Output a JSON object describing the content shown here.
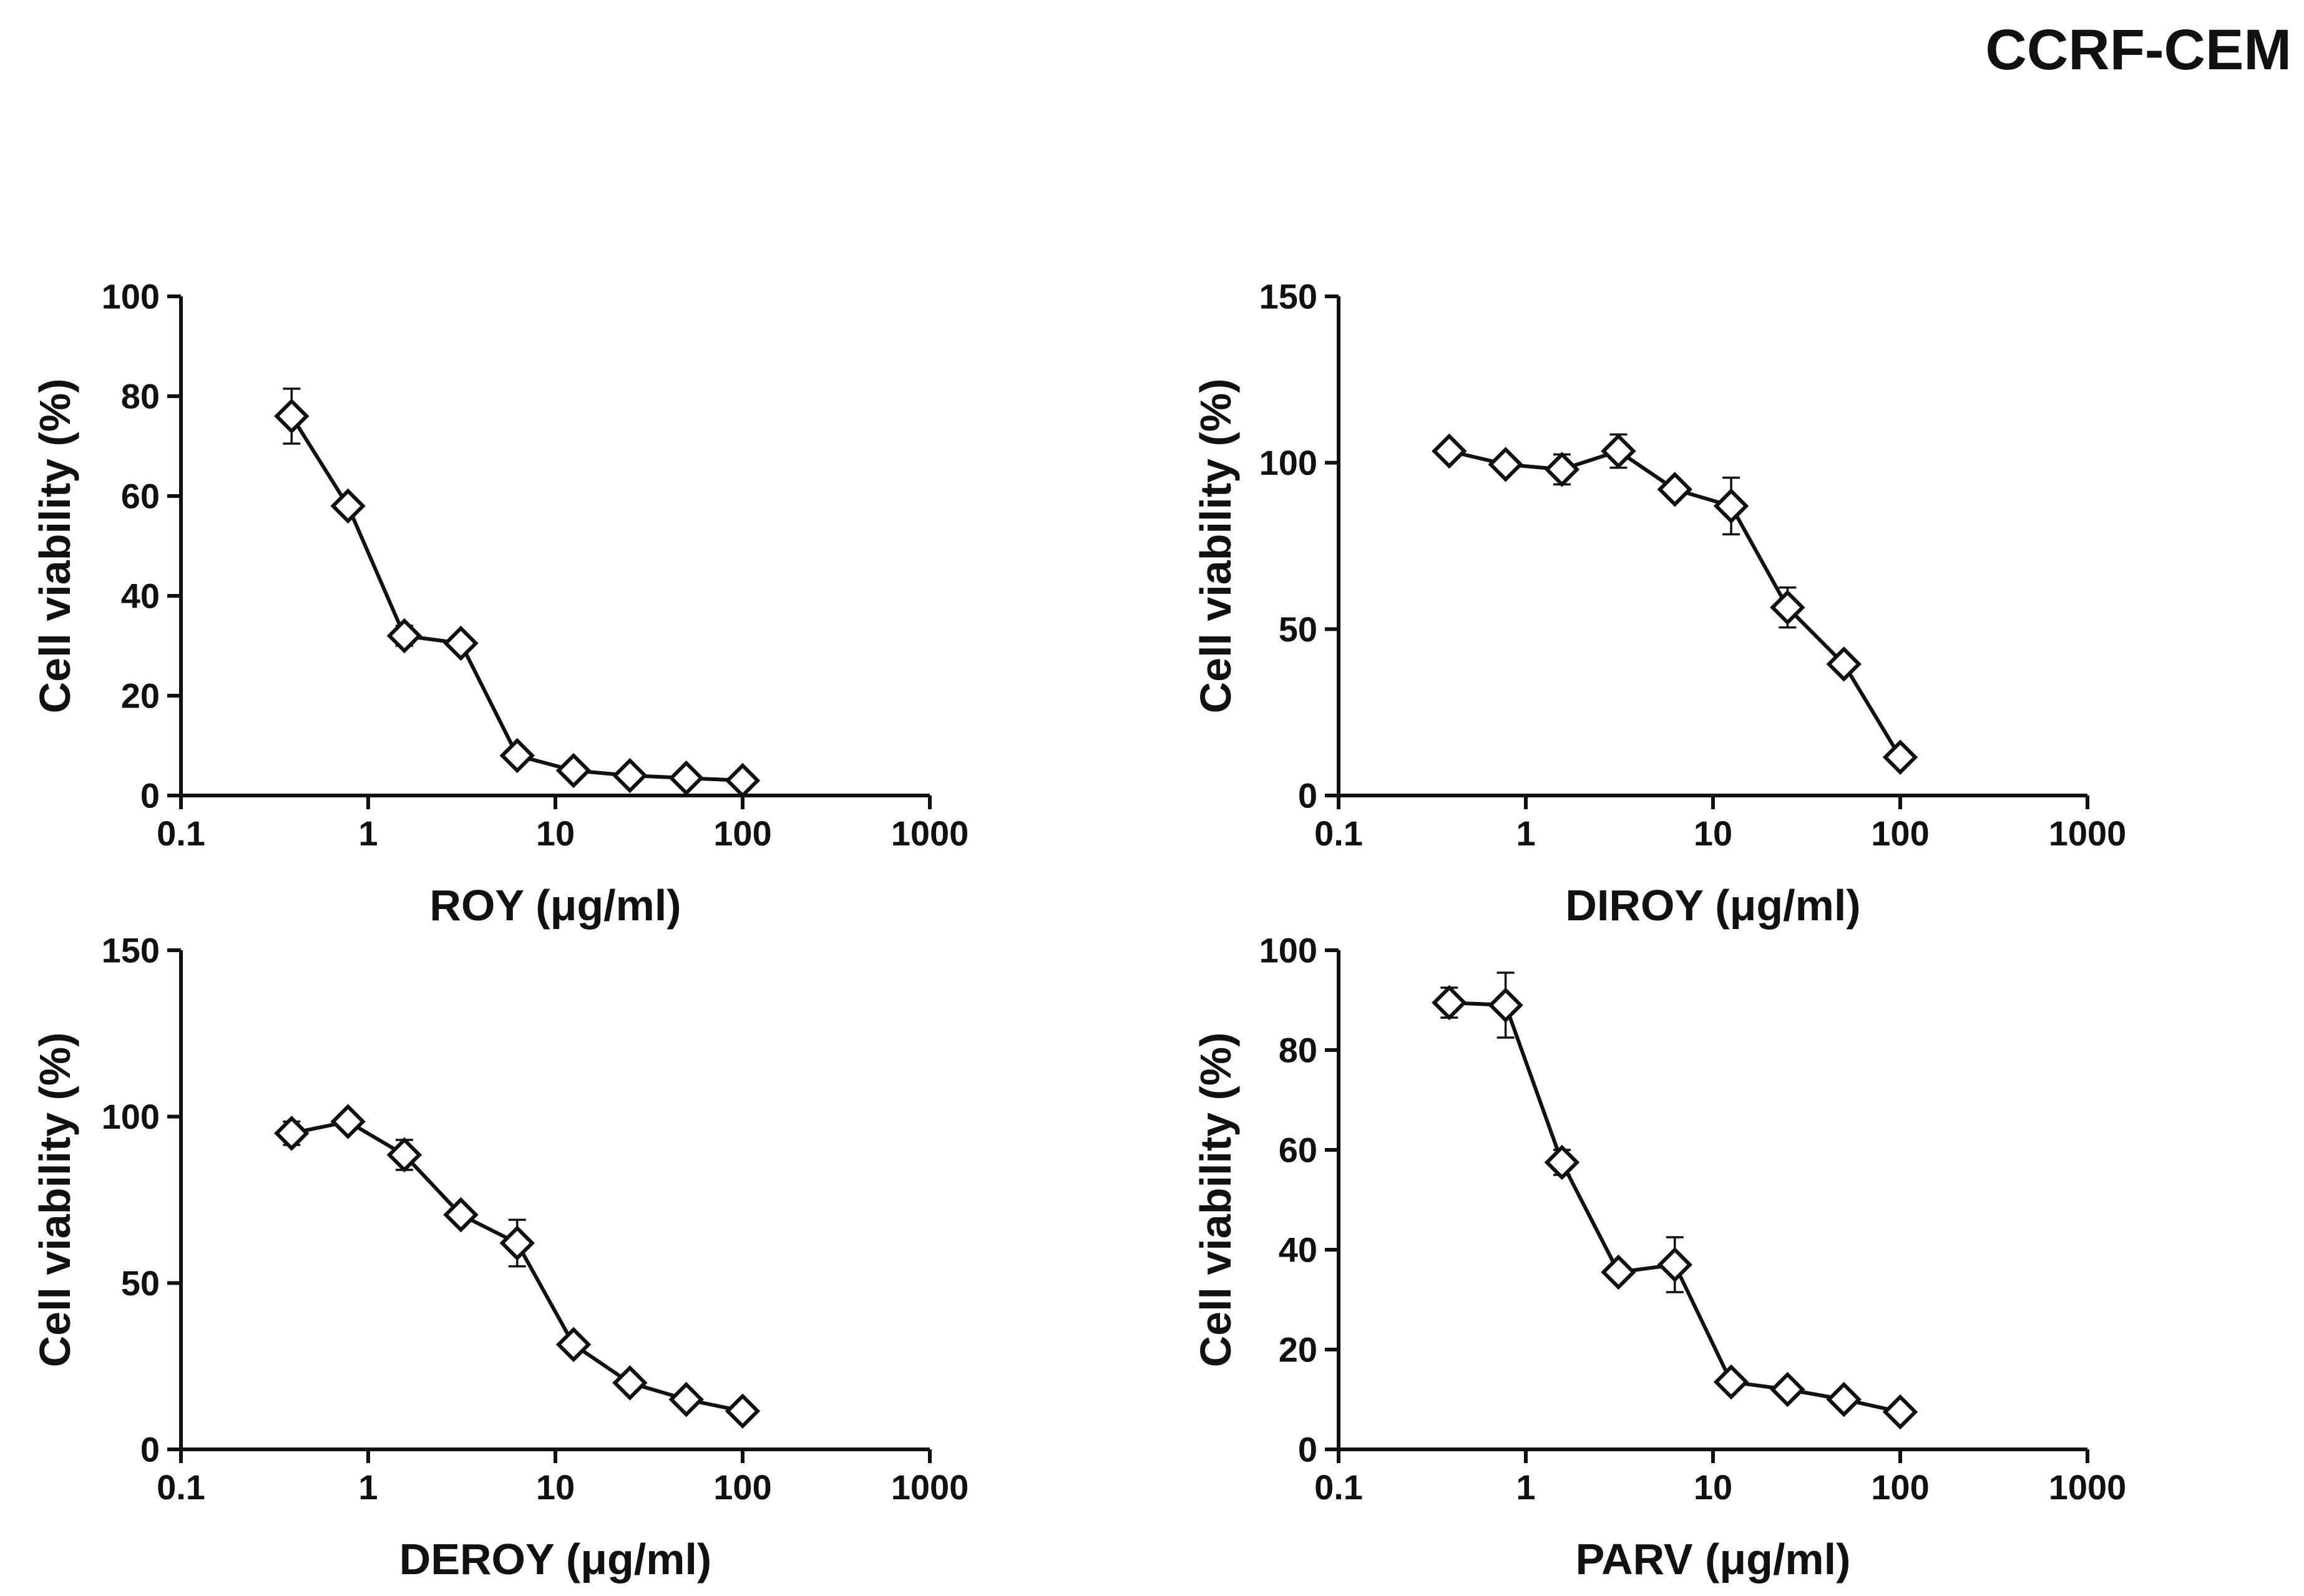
{
  "figure_title": "CCRF-CEM",
  "chart_data": [
    {
      "type": "line",
      "ylabel": "Cell viability (%)",
      "xlabel": "ROY (μg/ml)",
      "xscale": "log",
      "xlim": [
        0.1,
        1000
      ],
      "ylim": [
        0,
        100
      ],
      "xticks": [
        0.1,
        1,
        10,
        100,
        1000
      ],
      "xtick_labels": [
        "0.1",
        "1",
        "10",
        "100",
        "1000"
      ],
      "yticks": [
        0,
        20,
        40,
        60,
        80,
        100
      ],
      "ytick_labels": [
        "0",
        "20",
        "40",
        "60",
        "80",
        "100"
      ],
      "x": [
        0.39,
        0.78,
        1.56,
        3.125,
        6.25,
        12.5,
        25,
        50,
        100
      ],
      "series": [
        {
          "name": "ROY",
          "values": [
            76,
            58,
            32,
            30.5,
            8,
            5,
            4,
            3.5,
            3
          ],
          "errors": [
            5.5,
            1,
            2,
            1.5,
            1.5,
            1,
            1,
            1,
            1
          ]
        }
      ]
    },
    {
      "type": "line",
      "ylabel": "Cell viability (%)",
      "xlabel": "DIROY (μg/ml)",
      "xscale": "log",
      "xlim": [
        0.1,
        1000
      ],
      "ylim": [
        0,
        150
      ],
      "xticks": [
        0.1,
        1,
        10,
        100,
        1000
      ],
      "xtick_labels": [
        "0.1",
        "1",
        "10",
        "100",
        "1000"
      ],
      "yticks": [
        0,
        50,
        100,
        150
      ],
      "ytick_labels": [
        "0",
        "50",
        "100",
        "150"
      ],
      "x": [
        0.39,
        0.78,
        1.56,
        3.125,
        6.25,
        12.5,
        25,
        50,
        100
      ],
      "series": [
        {
          "name": "DIROY",
          "values": [
            103.5,
            99.5,
            98,
            103.5,
            92,
            87,
            56.5,
            39.5,
            11.5
          ],
          "errors": [
            2,
            1.5,
            4.5,
            5,
            1.5,
            8.5,
            6,
            1.5,
            1
          ]
        }
      ]
    },
    {
      "type": "line",
      "ylabel": "Cell viability (%)",
      "xlabel": "DEROY (μg/ml)",
      "xscale": "log",
      "xlim": [
        0.1,
        1000
      ],
      "ylim": [
        0,
        150
      ],
      "xticks": [
        0.1,
        1,
        10,
        100,
        1000
      ],
      "xtick_labels": [
        "0.1",
        "1",
        "10",
        "100",
        "1000"
      ],
      "yticks": [
        0,
        50,
        100,
        150
      ],
      "ytick_labels": [
        "0",
        "50",
        "100",
        "150"
      ],
      "x": [
        0.39,
        0.78,
        1.56,
        3.125,
        6.25,
        12.5,
        25,
        50,
        100
      ],
      "series": [
        {
          "name": "DEROY",
          "values": [
            95,
            98.5,
            88.5,
            70.5,
            62,
            31.5,
            20,
            15,
            11.5
          ],
          "errors": [
            3.5,
            1.5,
            4.5,
            1.5,
            7,
            1.5,
            1,
            1,
            1
          ]
        }
      ]
    },
    {
      "type": "line",
      "ylabel": "Cell viability (%)",
      "xlabel": "PARV (μg/ml)",
      "xscale": "log",
      "xlim": [
        0.1,
        1000
      ],
      "ylim": [
        0,
        100
      ],
      "xticks": [
        0.1,
        1,
        10,
        100,
        1000
      ],
      "xtick_labels": [
        "0.1",
        "1",
        "10",
        "100",
        "1000"
      ],
      "yticks": [
        0,
        20,
        40,
        60,
        80,
        100
      ],
      "ytick_labels": [
        "0",
        "20",
        "40",
        "60",
        "80",
        "100"
      ],
      "x": [
        0.39,
        0.78,
        1.56,
        3.125,
        6.25,
        12.5,
        25,
        50,
        100
      ],
      "series": [
        {
          "name": "PARV",
          "values": [
            89.5,
            89,
            57.5,
            35.5,
            37,
            13.5,
            12,
            10,
            7.5
          ],
          "errors": [
            3,
            6.5,
            2.5,
            1,
            5.5,
            1,
            1,
            1,
            1
          ]
        }
      ]
    }
  ]
}
